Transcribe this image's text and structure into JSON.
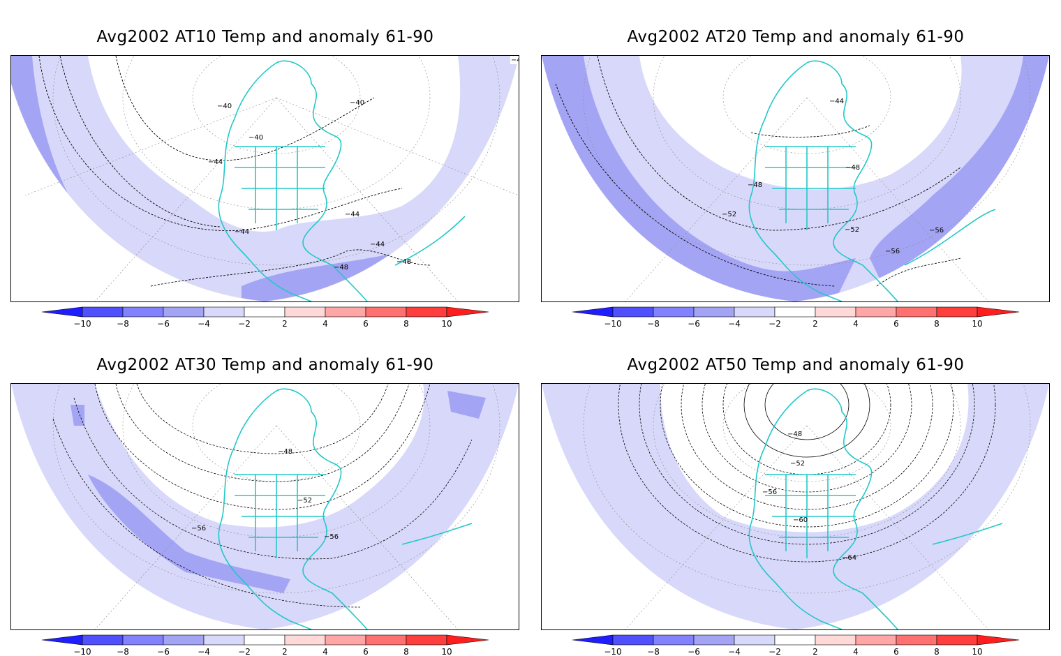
{
  "colors": {
    "anom_neg10": "#1e1eff",
    "anom_neg8": "#5050ff",
    "anom_neg6": "#8282ff",
    "anom_neg4": "#a4a4f5",
    "anom_neg2": "#d8d8fa",
    "anom_neutral": "#ffffff",
    "anom_pos2": "#ffd8d8",
    "anom_pos4": "#ffa6a6",
    "anom_pos6": "#ff7070",
    "anom_pos8": "#ff3e3e",
    "anom_pos10": "#ff1e1e",
    "coastline": "#22c8c8",
    "contour": "#000000",
    "graticule": "#888888"
  },
  "colorbar": {
    "labels": [
      "-10",
      "-8",
      "-6",
      "-4",
      "-2",
      "2",
      "4",
      "6",
      "8",
      "10"
    ]
  },
  "panels": [
    {
      "id": "at10",
      "title": "Avg2002 AT10 Temp and anomaly 61-90",
      "contour_labels": [
        "-48",
        "-40",
        "-40",
        "-40",
        "-44",
        "-44",
        "-44",
        "-44",
        "-48",
        "-48"
      ]
    },
    {
      "id": "at20",
      "title": "Avg2002 AT20 Temp and anomaly 61-90",
      "contour_labels": [
        "-44",
        "-48",
        "-48",
        "-52",
        "-52",
        "-56",
        "-56"
      ]
    },
    {
      "id": "at30",
      "title": "Avg2002 AT30 Temp and anomaly 61-90",
      "contour_labels": [
        "-48",
        "-52",
        "-56",
        "-56"
      ]
    },
    {
      "id": "at50",
      "title": "Avg2002 AT50 Temp and anomaly 61-90",
      "contour_labels": [
        "-48",
        "-52",
        "-56",
        "-60",
        "-64"
      ]
    }
  ]
}
